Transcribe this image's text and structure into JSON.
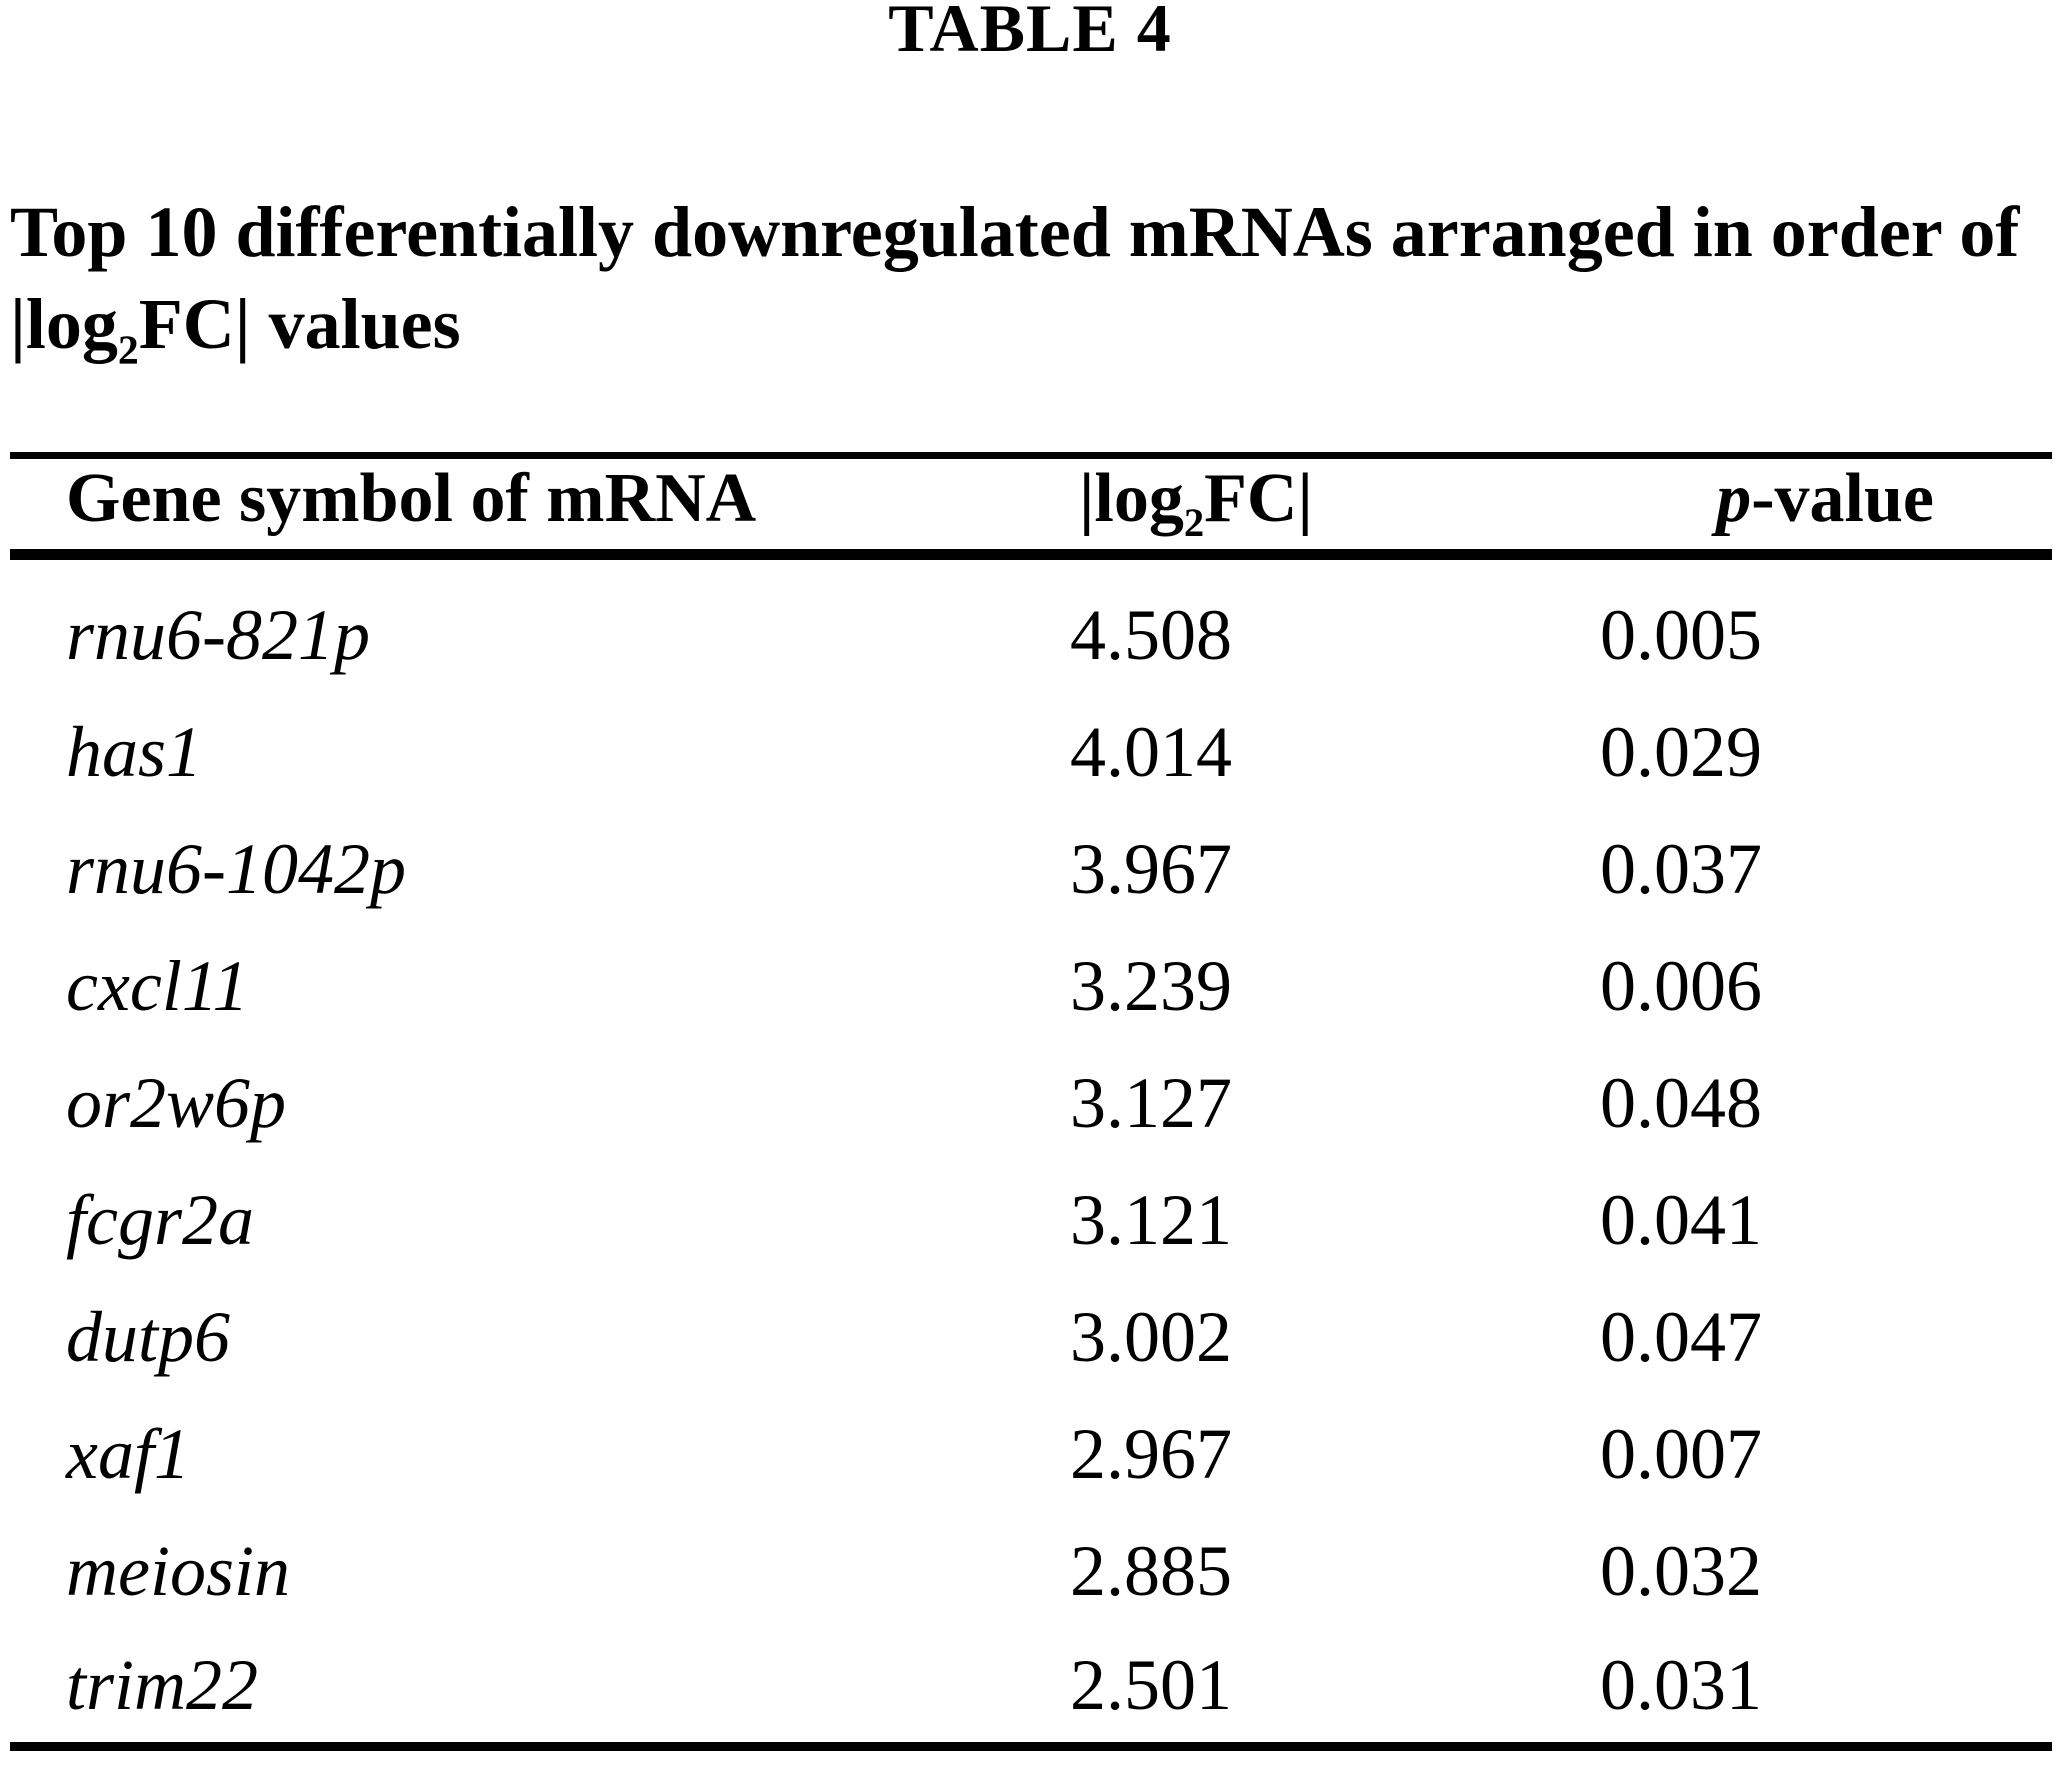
{
  "table_label": "TABLE 4",
  "caption": {
    "line1": "Top 10 differentially downregulated mRNAs arranged in order of",
    "line2_prefix": "|log",
    "line2_sub": "2",
    "line2_suffix": "FC| values"
  },
  "columns": {
    "gene": "Gene symbol of mRNA",
    "log2fc": {
      "prefix": "|log",
      "sub": "2",
      "suffix": "FC|"
    },
    "pvalue": {
      "italic": "p",
      "rest": "-value"
    }
  },
  "colors": {
    "text": "#000000",
    "background": "#ffffff",
    "rules": "#000000"
  },
  "rows": [
    {
      "gene": "rnu6-821p",
      "log2fc": "4.508",
      "pvalue": "0.005"
    },
    {
      "gene": "has1",
      "log2fc": "4.014",
      "pvalue": "0.029"
    },
    {
      "gene": "rnu6-1042p",
      "log2fc": "3.967",
      "pvalue": "0.037"
    },
    {
      "gene": "cxcl11",
      "log2fc": "3.239",
      "pvalue": "0.006"
    },
    {
      "gene": "or2w6p",
      "log2fc": "3.127",
      "pvalue": "0.048"
    },
    {
      "gene": "fcgr2a",
      "log2fc": "3.121",
      "pvalue": "0.041"
    },
    {
      "gene": "dutp6",
      "log2fc": "3.002",
      "pvalue": "0.047"
    },
    {
      "gene": "xaf1",
      "log2fc": "2.967",
      "pvalue": "0.007"
    },
    {
      "gene": "meiosin",
      "log2fc": "2.885",
      "pvalue": "0.032"
    },
    {
      "gene": "trim22",
      "log2fc": "2.501",
      "pvalue": "0.031"
    }
  ]
}
